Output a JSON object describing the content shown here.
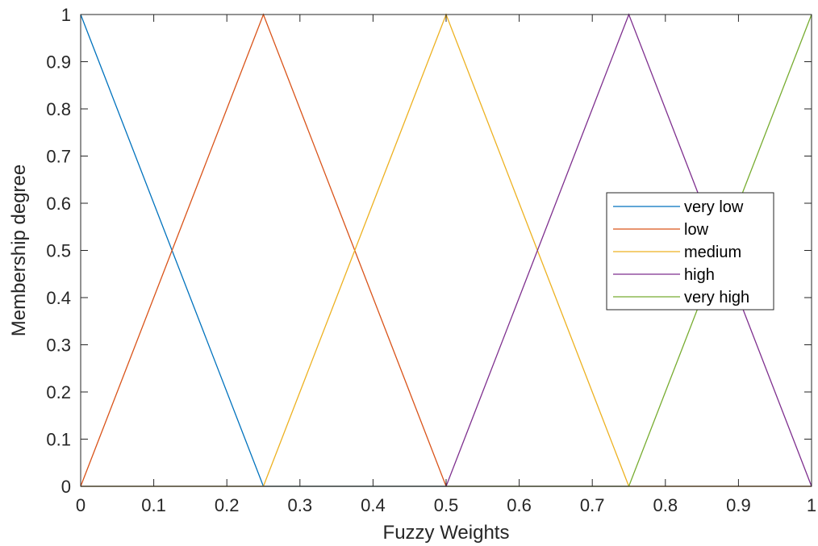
{
  "chart_data": {
    "type": "line",
    "title": "",
    "xlabel": "Fuzzy Weights",
    "ylabel": "Membership degree",
    "xlim": [
      0,
      1
    ],
    "ylim": [
      0,
      1
    ],
    "x_ticks": [
      "0",
      "0.1",
      "0.2",
      "0.3",
      "0.4",
      "0.5",
      "0.6",
      "0.7",
      "0.8",
      "0.9",
      "1"
    ],
    "y_ticks": [
      "0",
      "0.1",
      "0.2",
      "0.3",
      "0.4",
      "0.5",
      "0.6",
      "0.7",
      "0.8",
      "0.9",
      "1"
    ],
    "grid": false,
    "legend_position": "right-center",
    "series": [
      {
        "name": "very low",
        "color": "#0072BD",
        "x": [
          0,
          0.25,
          1
        ],
        "y": [
          1,
          0,
          0
        ]
      },
      {
        "name": "low",
        "color": "#D95319",
        "x": [
          0,
          0.25,
          0.5,
          1
        ],
        "y": [
          0,
          1,
          0,
          0
        ]
      },
      {
        "name": "medium",
        "color": "#EDB120",
        "x": [
          0,
          0.25,
          0.5,
          0.75,
          1
        ],
        "y": [
          0,
          0,
          1,
          0,
          0
        ]
      },
      {
        "name": "high",
        "color": "#7E2F8E",
        "x": [
          0,
          0.5,
          0.75,
          1
        ],
        "y": [
          0,
          0,
          1,
          0
        ]
      },
      {
        "name": "very high",
        "color": "#77AC30",
        "x": [
          0,
          0.75,
          1
        ],
        "y": [
          0,
          0,
          1
        ]
      }
    ]
  }
}
